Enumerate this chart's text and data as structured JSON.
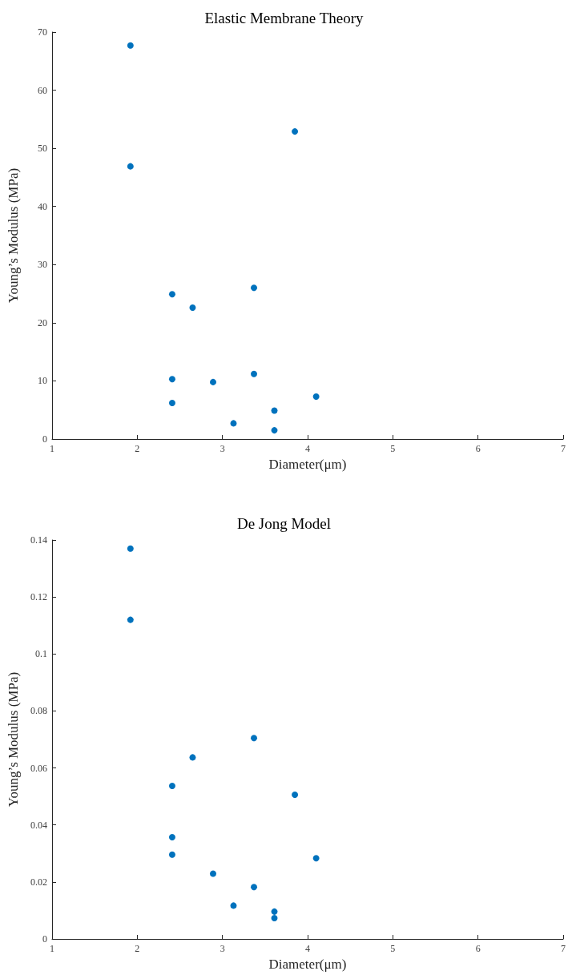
{
  "chart_data": [
    {
      "type": "scatter",
      "title": "Elastic Membrane Theory",
      "xlabel": "Diameter(μm)",
      "ylabel": "Young’s Modulus (MPa)",
      "x": [
        1.92,
        1.92,
        3.85,
        2.41,
        2.65,
        3.37,
        2.41,
        2.41,
        2.89,
        3.37,
        4.1,
        3.61,
        3.13,
        3.61
      ],
      "series": [
        {
          "color": "#0072bd",
          "values": [
            67.7,
            46.9,
            52.9,
            24.9,
            22.6,
            26.0,
            10.3,
            6.2,
            9.8,
            11.2,
            7.3,
            4.9,
            2.7,
            1.5
          ]
        }
      ],
      "xlim": [
        1,
        7
      ],
      "xticks": [
        1,
        2,
        3,
        4,
        5,
        6,
        7
      ],
      "ylim": [
        0,
        70
      ],
      "yticks": [
        0,
        10,
        20,
        30,
        40,
        50,
        60,
        70
      ],
      "marker": "circle",
      "grid": false
    },
    {
      "type": "scatter",
      "title": "De Jong Model",
      "xlabel": "Diameter(μm)",
      "ylabel": "Young’s Modulus (MPa)",
      "x": [
        1.92,
        1.92,
        3.37,
        2.65,
        2.41,
        3.85,
        2.41,
        2.41,
        4.1,
        2.89,
        3.37,
        3.13,
        3.61,
        3.61
      ],
      "series": [
        {
          "color": "#0072bd",
          "values": [
            0.137,
            0.112,
            0.0705,
            0.0637,
            0.0537,
            0.0506,
            0.0357,
            0.0296,
            0.0283,
            0.0229,
            0.0182,
            0.0117,
            0.0096,
            0.0073
          ]
        }
      ],
      "xlim": [
        1,
        7
      ],
      "xticks": [
        1,
        2,
        3,
        4,
        5,
        6,
        7
      ],
      "ylim": [
        0,
        0.14
      ],
      "yticks": [
        0,
        0.02,
        0.04,
        0.06,
        0.08,
        0.1,
        0.12,
        0.14
      ],
      "marker": "circle",
      "grid": false
    }
  ]
}
